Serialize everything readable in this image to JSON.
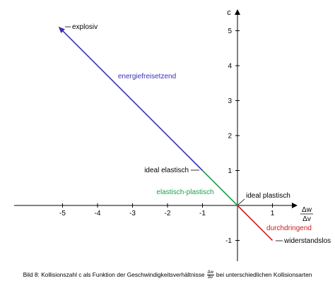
{
  "chart_data": {
    "type": "line",
    "title": "",
    "xlabel": {
      "numerator": "Δw",
      "denominator": "Δv"
    },
    "ylabel": "c",
    "xlim": [
      -5.5,
      1.5
    ],
    "ylim": [
      -1.2,
      5.6
    ],
    "x_ticks": [
      -5,
      -4,
      -3,
      -2,
      -1,
      0,
      1
    ],
    "y_ticks": [
      -1,
      0,
      1,
      2,
      3,
      4,
      5
    ],
    "x_tick_labels": [
      "-5",
      "-4",
      "-3",
      "-2",
      "-1",
      "",
      "1"
    ],
    "y_tick_labels": [
      "-1",
      "",
      "1",
      "2",
      "3",
      "4",
      "5"
    ],
    "grid": false,
    "series": [
      {
        "name": "energiefreisetzend",
        "color": "#3b2fb4",
        "points": [
          [
            -1,
            1
          ],
          [
            -5.1,
            5.1
          ]
        ],
        "arrow_at_end": true
      },
      {
        "name": "elastisch-plastisch",
        "color": "#1aa14a",
        "points": [
          [
            0,
            0
          ],
          [
            -1,
            1
          ]
        ]
      },
      {
        "name": "durchdringend",
        "color": "#cc1e1e",
        "points": [
          [
            0,
            0
          ],
          [
            1,
            -1
          ]
        ]
      }
    ],
    "annotations": [
      {
        "text": "explosiv",
        "x": -5.1,
        "y": 5.1
      },
      {
        "text": "ideal elastisch",
        "x": -1,
        "y": 1
      },
      {
        "text": "ideal plastisch",
        "x": 0,
        "y": 0
      },
      {
        "text": "widerstandslos",
        "x": 1,
        "y": -1
      }
    ]
  },
  "caption": {
    "prefix": "Bild 8:  Kollisionszahl c als Funktion der Geschwindigkeitsverhältnisse",
    "frac_num": "Δw",
    "frac_den": "Δv",
    "suffix": "bei unterschiedlichen Kollisionsarten"
  }
}
